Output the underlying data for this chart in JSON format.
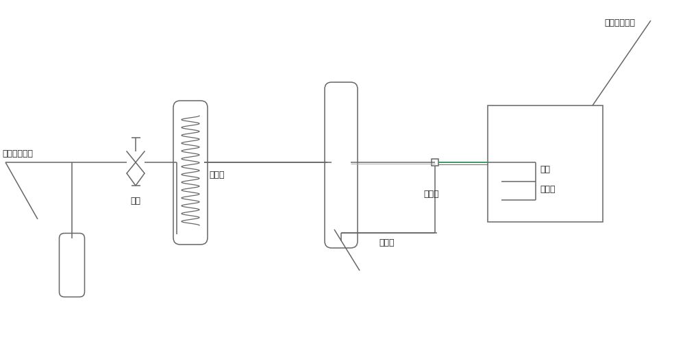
{
  "bg_color": "#ffffff",
  "line_color": "#666666",
  "green_color": "#3a9a5c",
  "labels": {
    "co2": "二氧化碳气体",
    "valve": "阀门",
    "resistor": "电阻丝",
    "pump": "加压泵",
    "tank": "混气罐",
    "nozzle": "喷头",
    "adapter": "转接头",
    "vacuum": "真空雾化设备"
  },
  "fig_width": 10.0,
  "fig_height": 4.92,
  "xlim": [
    0,
    10
  ],
  "ylim": [
    0,
    4.92
  ]
}
